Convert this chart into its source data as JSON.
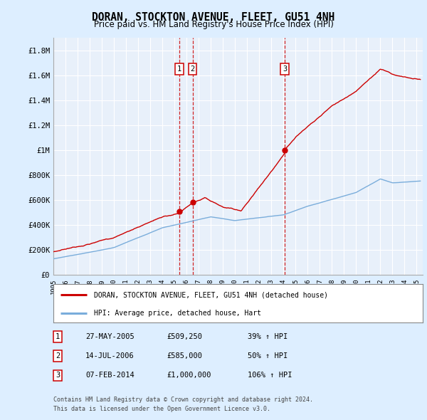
{
  "title": "DORAN, STOCKTON AVENUE, FLEET, GU51 4NH",
  "subtitle": "Price paid vs. HM Land Registry's House Price Index (HPI)",
  "legend_line1": "DORAN, STOCKTON AVENUE, FLEET, GU51 4NH (detached house)",
  "legend_line2": "HPI: Average price, detached house, Hart",
  "footer_line1": "Contains HM Land Registry data © Crown copyright and database right 2024.",
  "footer_line2": "This data is licensed under the Open Government Licence v3.0.",
  "transactions": [
    {
      "num": 1,
      "date": "27-MAY-2005",
      "price": "£509,250",
      "hpi": "39% ↑ HPI",
      "year": 2005.4
    },
    {
      "num": 2,
      "date": "14-JUL-2006",
      "price": "£585,000",
      "hpi": "50% ↑ HPI",
      "year": 2006.5
    },
    {
      "num": 3,
      "date": "07-FEB-2014",
      "price": "£1,000,000",
      "hpi": "106% ↑ HPI",
      "year": 2014.1
    }
  ],
  "trans_prices": [
    509250,
    585000,
    1000000
  ],
  "ylim": [
    0,
    1900000
  ],
  "xlim_start": 1995.0,
  "xlim_end": 2025.5,
  "red_color": "#cc0000",
  "blue_color": "#7aaddb",
  "background_color": "#ddeeff",
  "plot_bg_color": "#e8f0fa",
  "grid_color": "#ffffff"
}
